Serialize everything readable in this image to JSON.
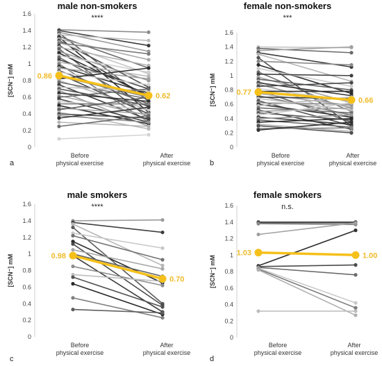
{
  "chart_data": [
    {
      "panel": "a",
      "type": "line",
      "title": "male non-smokers",
      "significance": "****",
      "ylabel": "[SCN⁻] mM",
      "categories": [
        "Before\nphysical exercise",
        "After\nphysical exercise"
      ],
      "ylim": [
        0,
        1.6
      ],
      "yticks": [
        "0",
        "0.2",
        "0.4",
        "0.6",
        "0.8",
        "1",
        "1.2",
        "1.4",
        "1.6"
      ],
      "mean": {
        "before": 0.86,
        "after": 0.62,
        "before_label": "0.86",
        "after_label": "0.62"
      },
      "subjects": [
        {
          "before": 1.41,
          "after": 1.38,
          "shade": "#8c8c8c"
        },
        {
          "before": 1.4,
          "after": 1.22,
          "shade": "#3c3c3c"
        },
        {
          "before": 1.38,
          "after": 1.15,
          "shade": "#9a9a9a"
        },
        {
          "before": 1.37,
          "after": 0.55,
          "shade": "#5a5a5a"
        },
        {
          "before": 1.35,
          "after": 1.28,
          "shade": "#bdbdbd"
        },
        {
          "before": 1.33,
          "after": 0.95,
          "shade": "#6e6e6e"
        },
        {
          "before": 1.32,
          "after": 0.42,
          "shade": "#2e2e2e"
        },
        {
          "before": 1.3,
          "after": 1.05,
          "shade": "#a8a8a8"
        },
        {
          "before": 1.28,
          "after": 0.72,
          "shade": "#4d4d4d"
        },
        {
          "before": 1.26,
          "after": 0.88,
          "shade": "#c6c6c6"
        },
        {
          "before": 1.25,
          "after": 1.12,
          "shade": "#7a7a7a"
        },
        {
          "before": 1.22,
          "after": 0.6,
          "shade": "#3a3a3a"
        },
        {
          "before": 1.2,
          "after": 0.98,
          "shade": "#b2b2b2"
        },
        {
          "before": 1.18,
          "after": 0.35,
          "shade": "#5e5e5e"
        },
        {
          "before": 1.15,
          "after": 0.8,
          "shade": "#969696"
        },
        {
          "before": 1.13,
          "after": 0.62,
          "shade": "#2a2a2a"
        },
        {
          "before": 1.1,
          "after": 0.9,
          "shade": "#cfcfcf"
        },
        {
          "before": 1.08,
          "after": 0.48,
          "shade": "#6a6a6a"
        },
        {
          "before": 1.05,
          "after": 0.7,
          "shade": "#444444"
        },
        {
          "before": 1.02,
          "after": 0.85,
          "shade": "#b8b8b8"
        },
        {
          "before": 1.0,
          "after": 0.3,
          "shade": "#808080"
        },
        {
          "before": 0.97,
          "after": 0.65,
          "shade": "#353535"
        },
        {
          "before": 0.95,
          "after": 0.82,
          "shade": "#a0a0a0"
        },
        {
          "before": 0.92,
          "after": 0.52,
          "shade": "#626262"
        },
        {
          "before": 0.9,
          "after": 0.75,
          "shade": "#d0d0d0"
        },
        {
          "before": 0.88,
          "after": 0.4,
          "shade": "#484848"
        },
        {
          "before": 0.85,
          "after": 0.6,
          "shade": "#8a8a8a"
        },
        {
          "before": 0.82,
          "after": 0.95,
          "shade": "#2c2c2c"
        },
        {
          "before": 0.8,
          "after": 0.45,
          "shade": "#b0b0b0"
        },
        {
          "before": 0.78,
          "after": 0.58,
          "shade": "#707070"
        },
        {
          "before": 0.75,
          "after": 0.33,
          "shade": "#3e3e3e"
        },
        {
          "before": 0.72,
          "after": 0.68,
          "shade": "#c2c2c2"
        },
        {
          "before": 0.7,
          "after": 0.5,
          "shade": "#565656"
        },
        {
          "before": 0.68,
          "after": 0.25,
          "shade": "#9c9c9c"
        },
        {
          "before": 0.65,
          "after": 0.55,
          "shade": "#303030"
        },
        {
          "before": 0.62,
          "after": 0.38,
          "shade": "#acacac"
        },
        {
          "before": 0.6,
          "after": 0.7,
          "shade": "#666666"
        },
        {
          "before": 0.58,
          "after": 0.3,
          "shade": "#424242"
        },
        {
          "before": 0.55,
          "after": 0.45,
          "shade": "#c8c8c8"
        },
        {
          "before": 0.52,
          "after": 0.52,
          "shade": "#7e7e7e"
        },
        {
          "before": 0.5,
          "after": 0.28,
          "shade": "#262626"
        },
        {
          "before": 0.47,
          "after": 0.4,
          "shade": "#a4a4a4"
        },
        {
          "before": 0.45,
          "after": 0.6,
          "shade": "#5c5c5c"
        },
        {
          "before": 0.42,
          "after": 0.22,
          "shade": "#bababa"
        },
        {
          "before": 0.4,
          "after": 0.35,
          "shade": "#4a4a4a"
        },
        {
          "before": 0.38,
          "after": 0.3,
          "shade": "#929292"
        },
        {
          "before": 0.35,
          "after": 0.48,
          "shade": "#383838"
        },
        {
          "before": 0.3,
          "after": 0.25,
          "shade": "#b6b6b6"
        },
        {
          "before": 0.25,
          "after": 0.38,
          "shade": "#6c6c6c"
        },
        {
          "before": 0.1,
          "after": 0.15,
          "shade": "#d4d4d4"
        }
      ]
    },
    {
      "panel": "b",
      "type": "line",
      "title": "female non-smokers",
      "significance": "***",
      "ylabel": "[SCN⁻] mM",
      "categories": [
        "Before\nphysical exercise",
        "After\nphysical exercise"
      ],
      "ylim": [
        0,
        1.6
      ],
      "yticks": [
        "0",
        "0.2",
        "0.4",
        "0.6",
        "0.8",
        "1",
        "1.2",
        "1.4",
        "1.6"
      ],
      "mean": {
        "before": 0.77,
        "after": 0.66,
        "before_label": "0.77",
        "after_label": "0.66"
      },
      "subjects": [
        {
          "before": 1.4,
          "after": 1.39,
          "shade": "#c4c4c4"
        },
        {
          "before": 1.38,
          "after": 1.32,
          "shade": "#6a6a6a"
        },
        {
          "before": 1.35,
          "after": 1.4,
          "shade": "#9e9e9e"
        },
        {
          "before": 1.32,
          "after": 1.12,
          "shade": "#3a3a3a"
        },
        {
          "before": 1.3,
          "after": 0.92,
          "shade": "#b4b4b4"
        },
        {
          "before": 1.25,
          "after": 0.3,
          "shade": "#525252"
        },
        {
          "before": 1.2,
          "after": 1.15,
          "shade": "#8a8a8a"
        },
        {
          "before": 1.15,
          "after": 0.75,
          "shade": "#2c2c2c"
        },
        {
          "before": 1.1,
          "after": 0.85,
          "shade": "#cccccc"
        },
        {
          "before": 1.05,
          "after": 0.5,
          "shade": "#727272"
        },
        {
          "before": 1.02,
          "after": 1.0,
          "shade": "#404040"
        },
        {
          "before": 0.98,
          "after": 0.62,
          "shade": "#a6a6a6"
        },
        {
          "before": 0.95,
          "after": 0.8,
          "shade": "#5e5e5e"
        },
        {
          "before": 0.92,
          "after": 0.4,
          "shade": "#bcbcbc"
        },
        {
          "before": 0.9,
          "after": 0.72,
          "shade": "#343434"
        },
        {
          "before": 0.88,
          "after": 0.55,
          "shade": "#949494"
        },
        {
          "before": 0.85,
          "after": 0.9,
          "shade": "#484848"
        },
        {
          "before": 0.82,
          "after": 0.65,
          "shade": "#d2d2d2"
        },
        {
          "before": 0.8,
          "after": 0.35,
          "shade": "#626262"
        },
        {
          "before": 0.78,
          "after": 0.78,
          "shade": "#2e2e2e"
        },
        {
          "before": 0.75,
          "after": 0.58,
          "shade": "#aaaaaa"
        },
        {
          "before": 0.72,
          "after": 0.45,
          "shade": "#787878"
        },
        {
          "before": 0.7,
          "after": 0.68,
          "shade": "#3c3c3c"
        },
        {
          "before": 0.68,
          "after": 0.52,
          "shade": "#c0c0c0"
        },
        {
          "before": 0.65,
          "after": 0.3,
          "shade": "#565656"
        },
        {
          "before": 0.62,
          "after": 0.6,
          "shade": "#8e8e8e"
        },
        {
          "before": 0.6,
          "after": 0.42,
          "shade": "#303030"
        },
        {
          "before": 0.58,
          "after": 0.7,
          "shade": "#b8b8b8"
        },
        {
          "before": 0.55,
          "after": 0.48,
          "shade": "#6e6e6e"
        },
        {
          "before": 0.52,
          "after": 0.25,
          "shade": "#444444"
        },
        {
          "before": 0.5,
          "after": 0.55,
          "shade": "#a2a2a2"
        },
        {
          "before": 0.48,
          "after": 0.38,
          "shade": "#5a5a5a"
        },
        {
          "before": 0.45,
          "after": 0.62,
          "shade": "#cacaca"
        },
        {
          "before": 0.42,
          "after": 0.32,
          "shade": "#383838"
        },
        {
          "before": 0.4,
          "after": 0.45,
          "shade": "#989898"
        },
        {
          "before": 0.38,
          "after": 0.28,
          "shade": "#666666"
        },
        {
          "before": 0.35,
          "after": 0.4,
          "shade": "#2a2a2a"
        },
        {
          "before": 0.32,
          "after": 0.22,
          "shade": "#b0b0b0"
        },
        {
          "before": 0.3,
          "after": 0.2,
          "shade": "#4e4e4e"
        },
        {
          "before": 0.26,
          "after": 0.27,
          "shade": "#868686"
        },
        {
          "before": 0.24,
          "after": 0.35,
          "shade": "#333333"
        }
      ]
    },
    {
      "panel": "c",
      "type": "line",
      "title": "male smokers",
      "significance": "****",
      "ylabel": "[SCN⁻] mM",
      "categories": [
        "Before\nphysical exercise",
        "After\nphysical exercise"
      ],
      "ylim": [
        0,
        1.6
      ],
      "yticks": [
        "0",
        "0.2",
        "0.4",
        "0.6",
        "0.8",
        "1",
        "1.2",
        "1.4",
        "1.6"
      ],
      "mean": {
        "before": 0.98,
        "after": 0.7,
        "before_label": "0.98",
        "after_label": "0.70"
      },
      "subjects": [
        {
          "before": 1.4,
          "after": 1.41,
          "shade": "#9a9a9a"
        },
        {
          "before": 1.38,
          "after": 1.26,
          "shade": "#3e3e3e"
        },
        {
          "before": 1.36,
          "after": 0.86,
          "shade": "#b6b6b6"
        },
        {
          "before": 1.32,
          "after": 0.4,
          "shade": "#5a5a5a"
        },
        {
          "before": 1.25,
          "after": 1.07,
          "shade": "#c8c8c8"
        },
        {
          "before": 1.22,
          "after": 0.93,
          "shade": "#707070"
        },
        {
          "before": 1.15,
          "after": 0.65,
          "shade": "#2c2c2c"
        },
        {
          "before": 1.12,
          "after": 0.38,
          "shade": "#4a4a4a"
        },
        {
          "before": 1.05,
          "after": 0.82,
          "shade": "#a8a8a8"
        },
        {
          "before": 1.0,
          "after": 0.73,
          "shade": "#626262"
        },
        {
          "before": 0.98,
          "after": 0.3,
          "shade": "#3a3a3a"
        },
        {
          "before": 0.85,
          "after": 0.62,
          "shade": "#8c8c8c"
        },
        {
          "before": 0.75,
          "after": 0.67,
          "shade": "#bdbdbd"
        },
        {
          "before": 0.72,
          "after": 0.36,
          "shade": "#525252"
        },
        {
          "before": 0.64,
          "after": 0.27,
          "shade": "#2a2a2a"
        },
        {
          "before": 0.47,
          "after": 0.23,
          "shade": "#808080"
        },
        {
          "before": 0.33,
          "after": 0.29,
          "shade": "#5e5e5e"
        }
      ]
    },
    {
      "panel": "d",
      "type": "line",
      "title": "female smokers",
      "significance": "n.s.",
      "ylabel": "[SCN⁻] mM",
      "categories": [
        "Before\nphysical exercise",
        "After\nphysical exercise"
      ],
      "ylim": [
        0,
        1.6
      ],
      "yticks": [
        "0",
        "0.2",
        "0.4",
        "0.6",
        "0.8",
        "1",
        "1.2",
        "1.4",
        "1.6"
      ],
      "mean": {
        "before": 1.03,
        "after": 1.0,
        "before_label": "1.03",
        "after_label": "1.00"
      },
      "subjects": [
        {
          "before": 1.4,
          "after": 1.4,
          "shade": "#3c3c3c"
        },
        {
          "before": 1.39,
          "after": 1.39,
          "shade": "#5a5a5a"
        },
        {
          "before": 1.38,
          "after": 1.37,
          "shade": "#8a8a8a"
        },
        {
          "before": 1.25,
          "after": 1.39,
          "shade": "#a0a0a0"
        },
        {
          "before": 0.87,
          "after": 1.3,
          "shade": "#2e2e2e"
        },
        {
          "before": 0.86,
          "after": 0.88,
          "shade": "#4a4a4a"
        },
        {
          "before": 0.85,
          "after": 0.76,
          "shade": "#6a6a6a"
        },
        {
          "before": 0.84,
          "after": 0.42,
          "shade": "#c8c8c8"
        },
        {
          "before": 0.83,
          "after": 0.36,
          "shade": "#7a7a7a"
        },
        {
          "before": 0.82,
          "after": 0.27,
          "shade": "#b0b0b0"
        },
        {
          "before": 0.32,
          "after": 0.32,
          "shade": "#bcbcbc"
        }
      ]
    }
  ]
}
